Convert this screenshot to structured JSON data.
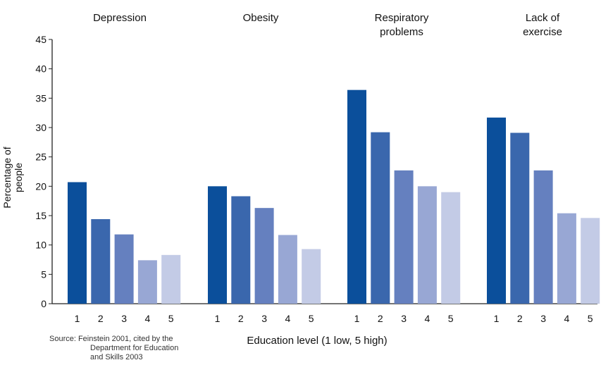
{
  "chart_data": {
    "type": "bar",
    "groups": [
      {
        "title_lines": [
          "Depression"
        ],
        "values": [
          20.7,
          14.4,
          11.8,
          7.4,
          8.3
        ]
      },
      {
        "title_lines": [
          "Obesity"
        ],
        "values": [
          20.0,
          18.3,
          16.3,
          11.7,
          9.3
        ]
      },
      {
        "title_lines": [
          "Respiratory",
          "problems"
        ],
        "values": [
          36.4,
          29.2,
          22.7,
          20.0,
          19.0
        ]
      },
      {
        "title_lines": [
          "Lack of",
          "exercise"
        ],
        "values": [
          31.7,
          29.1,
          22.7,
          15.4,
          14.6
        ]
      }
    ],
    "categories": [
      "1",
      "2",
      "3",
      "4",
      "5"
    ],
    "category_colors": [
      "#0b4f9b",
      "#3a67ad",
      "#6580bf",
      "#98a7d4",
      "#c3cbe6"
    ],
    "ylabel": "Percentage of people",
    "xlabel": "Education level (1 low, 5 high)",
    "ylim": [
      0,
      45
    ],
    "yticks": [
      0,
      5,
      10,
      15,
      20,
      25,
      30,
      35,
      40,
      45
    ],
    "grid": false,
    "legend": "none"
  },
  "source_lines": [
    "Source: Feinstein 2001, cited by the",
    "Department for Education",
    "and Skills 2003"
  ]
}
